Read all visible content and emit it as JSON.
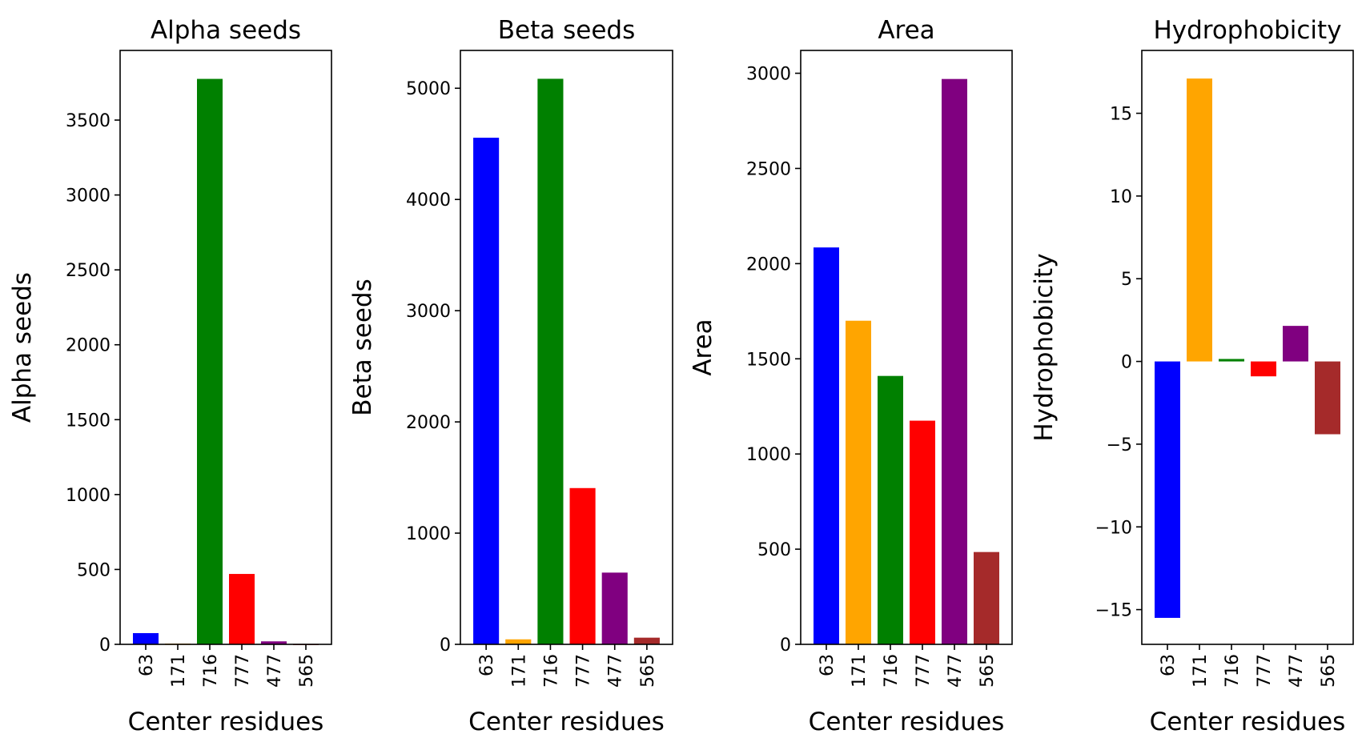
{
  "chart_data": [
    {
      "type": "bar",
      "title": "Alpha seeds",
      "xlabel": "Center residues",
      "ylabel": "Alpha seeds",
      "categories": [
        "63",
        "171",
        "716",
        "777",
        "477",
        "565"
      ],
      "values": [
        75,
        5,
        3775,
        470,
        20,
        3
      ],
      "colors": [
        "#0000ff",
        "#ffa500",
        "#008000",
        "#ff0000",
        "#800080",
        "#a52a2a"
      ],
      "ylim": [
        0,
        3965
      ],
      "yticks": [
        0,
        500,
        1000,
        1500,
        2000,
        2500,
        3000,
        3500
      ],
      "ytick_labels": [
        "0",
        "500",
        "1000",
        "1500",
        "2000",
        "2500",
        "3000",
        "3500"
      ]
    },
    {
      "type": "bar",
      "title": "Beta seeds",
      "xlabel": "Center residues",
      "ylabel": "Beta seeds",
      "categories": [
        "63",
        "171",
        "716",
        "777",
        "477",
        "565"
      ],
      "values": [
        4555,
        45,
        5085,
        1405,
        645,
        60
      ],
      "colors": [
        "#0000ff",
        "#ffa500",
        "#008000",
        "#ff0000",
        "#800080",
        "#a52a2a"
      ],
      "ylim": [
        0,
        5340
      ],
      "yticks": [
        0,
        1000,
        2000,
        3000,
        4000,
        5000
      ],
      "ytick_labels": [
        "0",
        "1000",
        "2000",
        "3000",
        "4000",
        "5000"
      ]
    },
    {
      "type": "bar",
      "title": "Area",
      "xlabel": "Center residues",
      "ylabel": "Area",
      "categories": [
        "63",
        "171",
        "716",
        "777",
        "477",
        "565"
      ],
      "values": [
        2085,
        1700,
        1410,
        1175,
        2970,
        485
      ],
      "colors": [
        "#0000ff",
        "#ffa500",
        "#008000",
        "#ff0000",
        "#800080",
        "#a52a2a"
      ],
      "ylim": [
        0,
        3120
      ],
      "yticks": [
        0,
        500,
        1000,
        1500,
        2000,
        2500,
        3000
      ],
      "ytick_labels": [
        "0",
        "500",
        "1000",
        "1500",
        "2000",
        "2500",
        "3000"
      ]
    },
    {
      "type": "bar",
      "title": "Hydrophobicity",
      "xlabel": "Center residues",
      "ylabel": "Hydrophobicity",
      "categories": [
        "63",
        "171",
        "716",
        "777",
        "477",
        "565"
      ],
      "values": [
        -15.5,
        17.1,
        0.15,
        -0.9,
        2.15,
        -4.4
      ],
      "colors": [
        "#0000ff",
        "#ffa500",
        "#008000",
        "#ff0000",
        "#800080",
        "#a52a2a"
      ],
      "ylim": [
        -17.1,
        18.8
      ],
      "yticks": [
        -15,
        -10,
        -5,
        0,
        5,
        10,
        15
      ],
      "ytick_labels": [
        "−15",
        "−10",
        "−5",
        "0",
        "5",
        "10",
        "15"
      ]
    }
  ]
}
